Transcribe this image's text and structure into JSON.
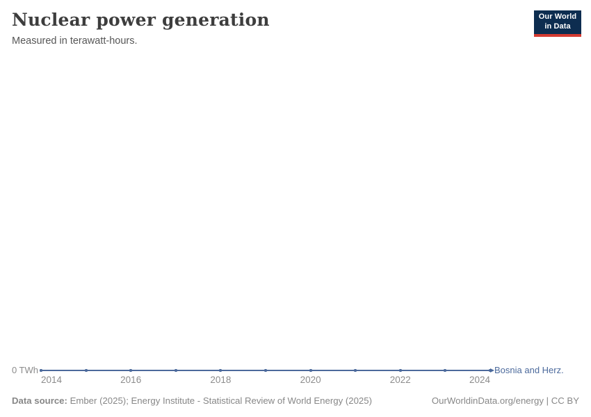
{
  "header": {
    "title": "Nuclear power generation",
    "subtitle": "Measured in terawatt-hours."
  },
  "logo": {
    "line1": "Our World",
    "line2": "in Data",
    "bg_color": "#0d2d50",
    "accent_color": "#d43b31"
  },
  "chart_data": {
    "type": "line",
    "title": "Nuclear power generation",
    "subtitle": "Measured in terawatt-hours.",
    "unit": "TWh",
    "xlim": [
      2014,
      2024
    ],
    "ylim": [
      0,
      0
    ],
    "grid": false,
    "x_ticks": [
      2014,
      2016,
      2018,
      2020,
      2022,
      2024
    ],
    "y_tick_labels": [
      "0 TWh"
    ],
    "legend_position": "end-of-line-label",
    "series": [
      {
        "name": "Bosnia and Herz.",
        "color": "#4C6A9C",
        "x": [
          2014,
          2015,
          2016,
          2017,
          2018,
          2019,
          2020,
          2021,
          2022,
          2023,
          2024
        ],
        "values": [
          0,
          0,
          0,
          0,
          0,
          0,
          0,
          0,
          0,
          0,
          0
        ]
      }
    ]
  },
  "footer": {
    "source_label": "Data source:",
    "source_text": "Ember (2025); Energy Institute - Statistical Review of World Energy (2025)",
    "credit": "OurWorldinData.org/energy | CC BY"
  }
}
